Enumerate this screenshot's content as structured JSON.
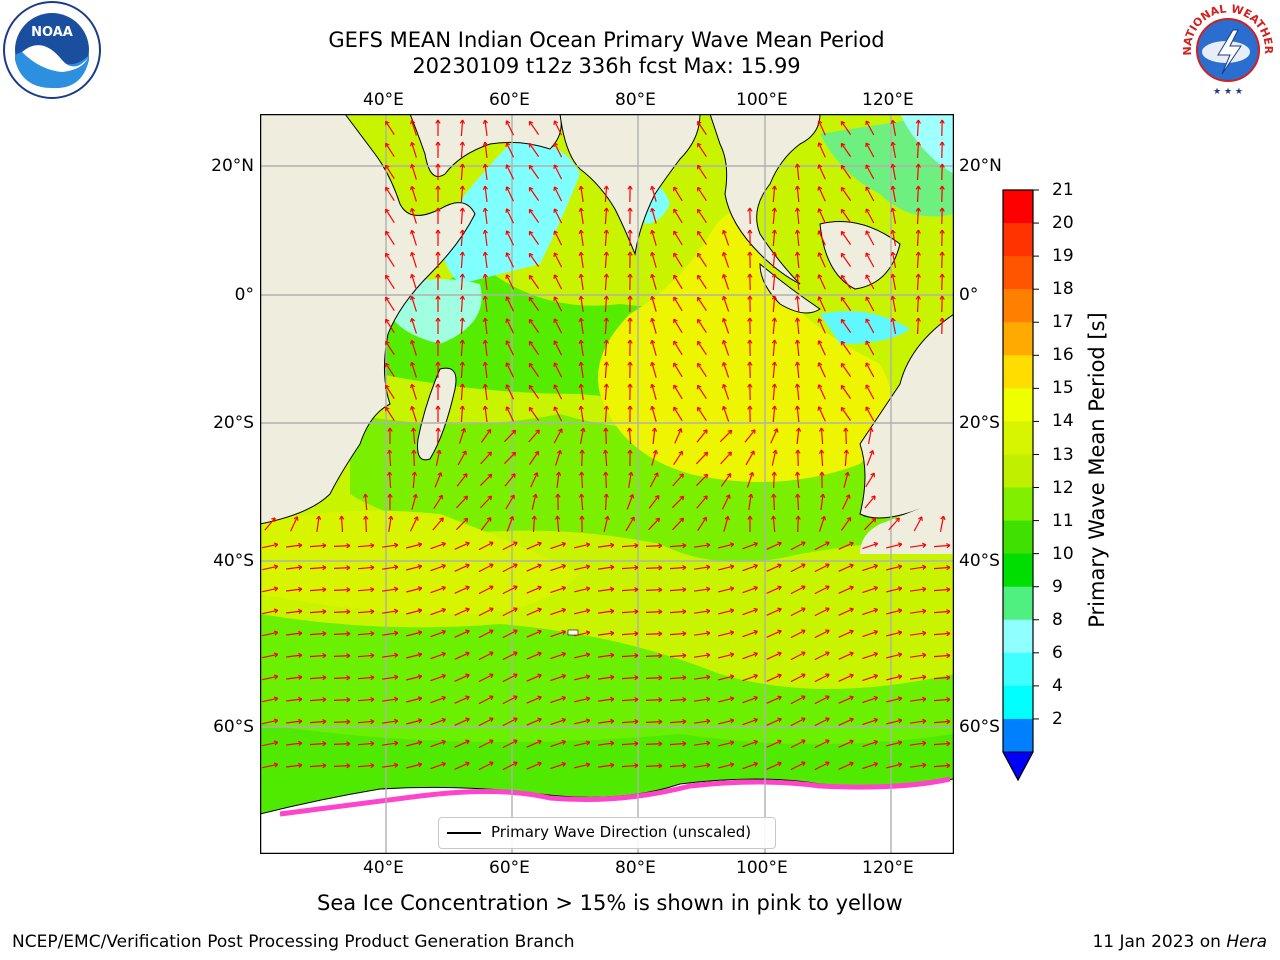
{
  "title": {
    "line1": "GEFS MEAN Indian Ocean Primary Wave Mean Period",
    "line2": "20230109 t12z 336h fcst   Max: 15.99"
  },
  "logos": {
    "left_name": "NOAA",
    "right_name": "NATIONAL WEATHER SERVICE"
  },
  "map": {
    "lon_labels": [
      "40°E",
      "60°E",
      "80°E",
      "100°E",
      "120°E"
    ],
    "lat_labels": [
      "20°N",
      "0°",
      "20°S",
      "40°S",
      "60°S"
    ],
    "legend_label": "Primary Wave Direction (unscaled)",
    "colors": {
      "land": "#efedde",
      "ocean_main": "#c8f400",
      "arrow": "#ff0000"
    }
  },
  "colorbar": {
    "label": "Primary Wave Mean Period [s]",
    "ticks": [
      "21",
      "20",
      "19",
      "18",
      "17",
      "16",
      "15",
      "14",
      "13",
      "12",
      "11",
      "10",
      "9",
      "8",
      "6",
      "4",
      "2"
    ],
    "colors": [
      "#ff0000",
      "#ff3300",
      "#ff5500",
      "#ff8000",
      "#ffaa00",
      "#ffdd00",
      "#eeff00",
      "#d8f500",
      "#c0f000",
      "#80f000",
      "#40e000",
      "#00dd00",
      "#50f080",
      "#90ffff",
      "#40ffff",
      "#00ffff",
      "#0080ff"
    ]
  },
  "caption": "Sea Ice Concentration > 15% is shown in pink to yellow",
  "footer": {
    "left": "NCEP/EMC/Verification Post Processing Product Generation Branch",
    "right_date": "11 Jan 2023 on ",
    "right_machine": "Hera"
  }
}
